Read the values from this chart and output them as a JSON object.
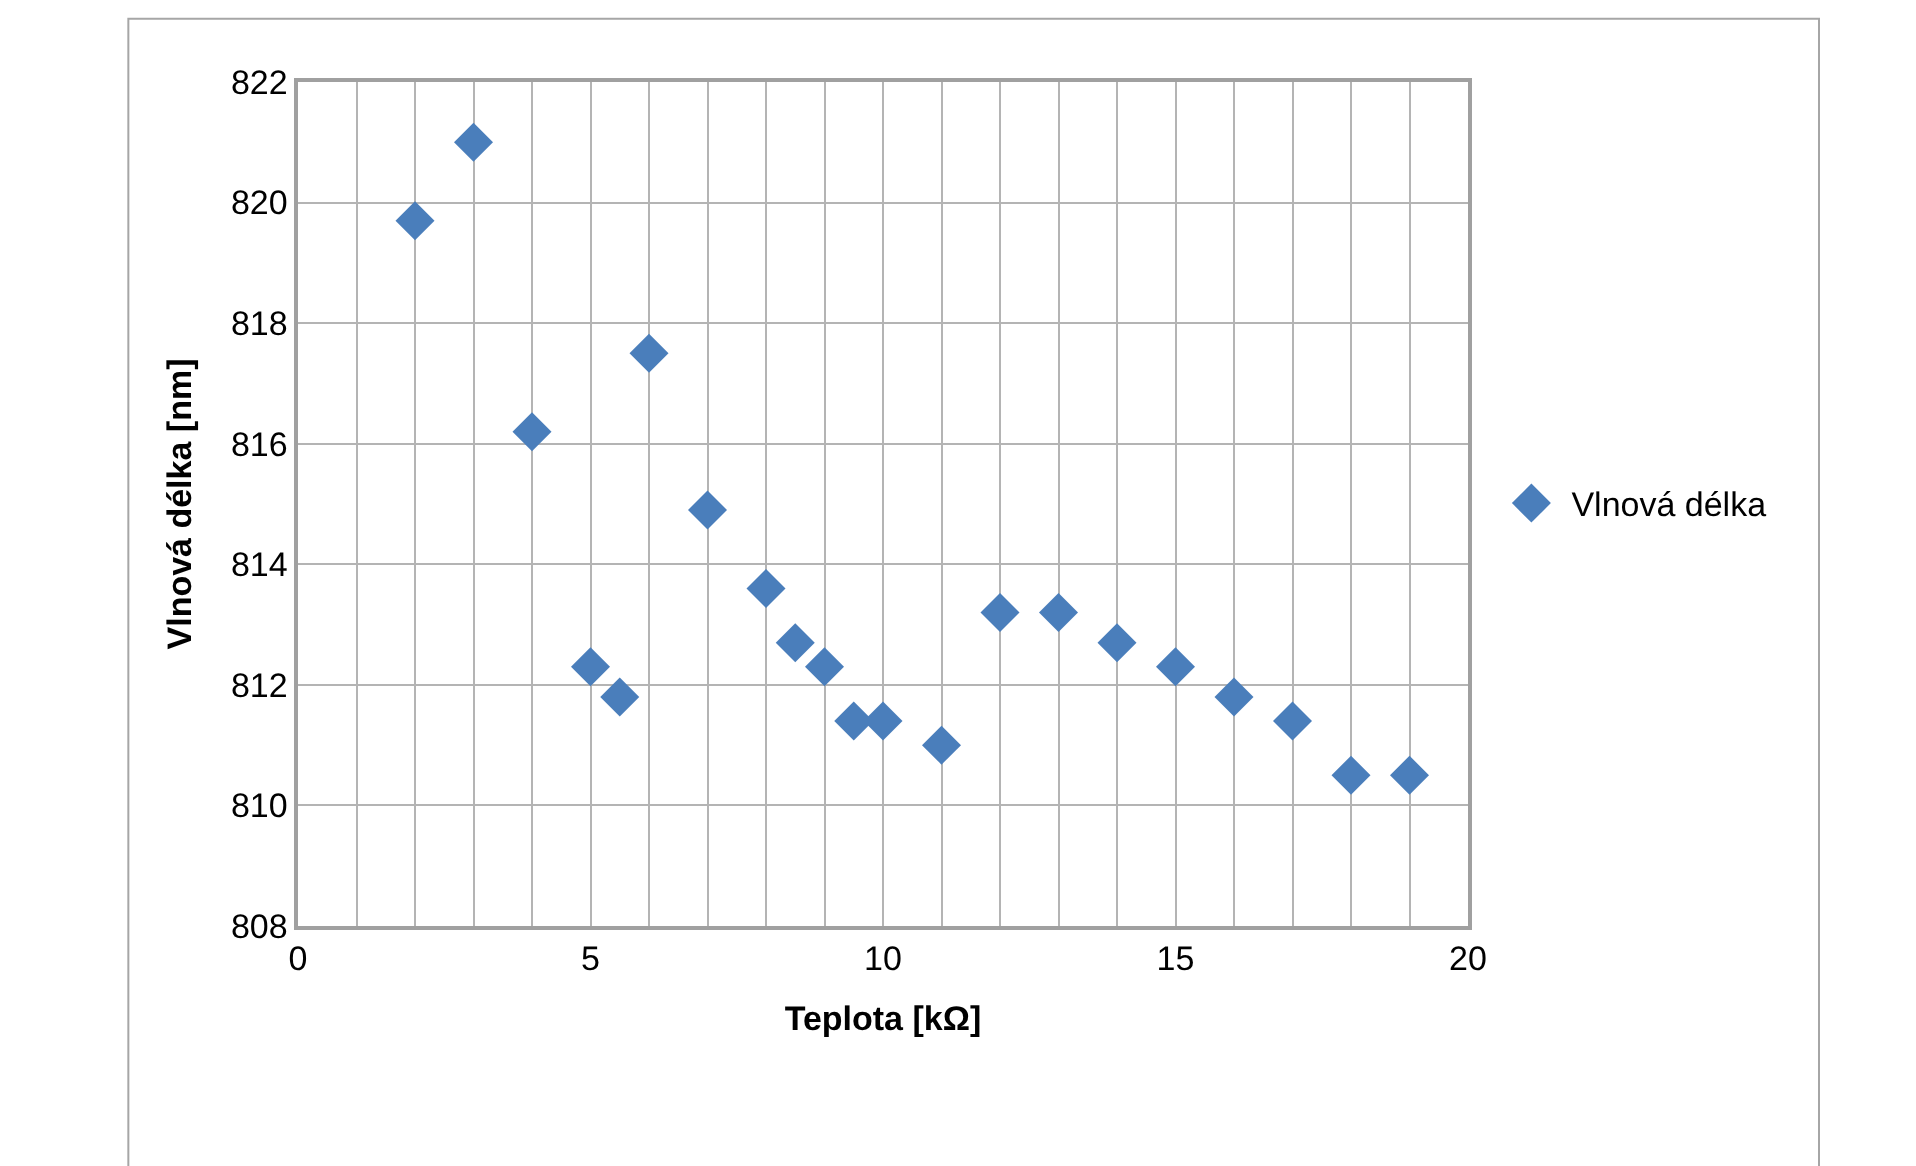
{
  "chart_data": {
    "type": "scatter",
    "xlabel": "Teplota [kΩ]",
    "ylabel": "Vlnová délka [nm]",
    "x": [
      2,
      3,
      4,
      5,
      5.5,
      6,
      7,
      8,
      8.5,
      9,
      9.5,
      10,
      11,
      12,
      13,
      14,
      15,
      16,
      17,
      18,
      19
    ],
    "series": [
      {
        "name": "Vlnová délka",
        "color": "#4a7ebb",
        "values": [
          819.7,
          821.0,
          816.2,
          812.3,
          811.8,
          817.5,
          814.9,
          813.6,
          812.7,
          812.3,
          811.4,
          811.4,
          811.0,
          813.2,
          813.2,
          812.7,
          812.3,
          811.8,
          811.4,
          810.5,
          810.5
        ]
      }
    ],
    "xlim": [
      0,
      20
    ],
    "xticks": [
      0,
      5,
      10,
      15,
      20
    ],
    "ylim": [
      808,
      822
    ],
    "yticks": [
      808,
      810,
      812,
      814,
      816,
      818,
      820,
      822
    ],
    "grid": true,
    "legend": "right",
    "marker": "diamond"
  }
}
